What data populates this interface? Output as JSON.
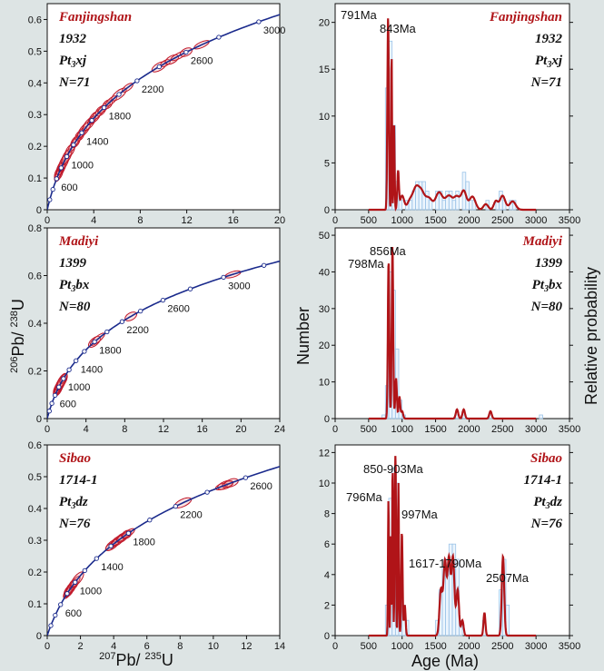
{
  "axis_titles": {
    "left_y": {
      "sup1": "206",
      "mid1": "Pb/ ",
      "sup2": "238",
      "mid2": "U"
    },
    "left_x": {
      "sup1": "207",
      "mid1": "Pb/ ",
      "sup2": "235",
      "mid2": "U"
    },
    "number": "Number",
    "relprob": "Relative probability",
    "age": "Age (Ma)"
  },
  "colors": {
    "concordia": "#1a2a8c",
    "ellipse": "#c0182a",
    "pdf": "#b01418",
    "hist": "#9cc4e8",
    "label": "#b01418"
  },
  "chart_data": [
    {
      "type": "scatter",
      "panel": "concordia",
      "site": "Fanjingshan",
      "sample": "1932",
      "unit": "Pt3xj",
      "n": "N=71",
      "xlabel": "207Pb/235U",
      "ylabel": "206Pb/238U",
      "xlim": [
        0,
        20
      ],
      "ylim": [
        0,
        0.65
      ],
      "xticks": [
        "0",
        "4",
        "8",
        "12",
        "16",
        "20"
      ],
      "yticks": [
        "0",
        "0.1",
        "0.2",
        "0.3",
        "0.4",
        "0.5",
        "0.6"
      ],
      "age_labels": [
        "600",
        "1000",
        "1400",
        "1800",
        "2200",
        "2600",
        "3000"
      ],
      "ellipse_ages": [
        650,
        700,
        750,
        780,
        800,
        820,
        850,
        900,
        950,
        1000,
        1050,
        1100,
        1200,
        1250,
        1300,
        1350,
        1400,
        1450,
        1500,
        1550,
        1600,
        1650,
        1700,
        1750,
        1800,
        1850,
        1900,
        2000,
        2100,
        2400,
        2450,
        2500,
        2550,
        2600,
        2700
      ]
    },
    {
      "type": "bar",
      "panel": "age-distribution",
      "site": "Fanjingshan",
      "sample": "1932",
      "unit": "Pt3xj",
      "n": "N=71",
      "xlabel": "Age (Ma)",
      "ylabel": "Number",
      "y2label": "Relative probability",
      "xlim": [
        0,
        3500
      ],
      "ylim": [
        0,
        22
      ],
      "xticks": [
        "0",
        "500",
        "1000",
        "1500",
        "2000",
        "2500",
        "3000",
        "3500"
      ],
      "yticks": [
        "0",
        "5",
        "10",
        "15",
        "20"
      ],
      "bins": [
        [
          750,
          800,
          13
        ],
        [
          800,
          850,
          18
        ],
        [
          850,
          900,
          9
        ],
        [
          900,
          950,
          3
        ],
        [
          950,
          1000,
          1
        ],
        [
          1050,
          1100,
          1
        ],
        [
          1100,
          1150,
          1
        ],
        [
          1150,
          1200,
          2
        ],
        [
          1200,
          1250,
          3
        ],
        [
          1250,
          1300,
          3
        ],
        [
          1300,
          1350,
          3
        ],
        [
          1350,
          1400,
          2
        ],
        [
          1400,
          1450,
          1
        ],
        [
          1500,
          1550,
          2
        ],
        [
          1550,
          1600,
          2
        ],
        [
          1600,
          1650,
          1
        ],
        [
          1650,
          1700,
          2
        ],
        [
          1700,
          1750,
          2
        ],
        [
          1750,
          1800,
          1
        ],
        [
          1800,
          1850,
          2
        ],
        [
          1900,
          1950,
          4
        ],
        [
          1950,
          2000,
          3
        ],
        [
          2000,
          2050,
          1
        ],
        [
          2050,
          2100,
          1
        ],
        [
          2250,
          2300,
          1
        ],
        [
          2400,
          2450,
          1
        ],
        [
          2450,
          2500,
          2
        ],
        [
          2500,
          2550,
          1
        ],
        [
          2600,
          2650,
          1
        ],
        [
          2650,
          2700,
          1
        ]
      ],
      "peaks": [
        [
          791,
          20.5,
          11
        ],
        [
          843,
          17,
          6
        ],
        [
          880,
          9,
          8
        ],
        [
          940,
          4,
          12
        ],
        [
          1000,
          1.5,
          30
        ],
        [
          1120,
          1,
          40
        ],
        [
          1200,
          1.8,
          40
        ],
        [
          1280,
          2,
          50
        ],
        [
          1400,
          1.2,
          50
        ],
        [
          1550,
          1.8,
          50
        ],
        [
          1700,
          1.5,
          60
        ],
        [
          1820,
          1.2,
          40
        ],
        [
          1920,
          2,
          40
        ],
        [
          2050,
          1.4,
          45
        ],
        [
          2250,
          0.6,
          35
        ],
        [
          2400,
          0.9,
          30
        ],
        [
          2500,
          1.5,
          40
        ],
        [
          2650,
          0.9,
          45
        ]
      ],
      "pdf_scale": 1,
      "peak_labels": [
        [
          "791Ma",
          791
        ],
        [
          "843Ma",
          843
        ]
      ]
    },
    {
      "type": "scatter",
      "panel": "concordia",
      "site": "Madiyi",
      "sample": "1399",
      "unit": "Pt3bx",
      "n": "N=80",
      "xlabel": "207Pb/235U",
      "ylabel": "206Pb/238U",
      "xlim": [
        0,
        24
      ],
      "ylim": [
        0,
        0.8
      ],
      "xticks": [
        "0",
        "4",
        "8",
        "12",
        "16",
        "20",
        "24"
      ],
      "yticks": [
        "0",
        "0.2",
        "0.4",
        "0.6",
        "0.8"
      ],
      "age_labels": [
        "600",
        "1000",
        "1400",
        "1800",
        "2200",
        "2600",
        "3000"
      ],
      "ellipse_ages": [
        700,
        750,
        780,
        800,
        820,
        850,
        880,
        900,
        920,
        950,
        1000,
        1800,
        1850,
        2300,
        3050
      ]
    },
    {
      "type": "bar",
      "panel": "age-distribution",
      "site": "Madiyi",
      "sample": "1399",
      "unit": "Pt3bx",
      "n": "N=80",
      "xlabel": "Age (Ma)",
      "ylabel": "Number",
      "y2label": "Relative probability",
      "xlim": [
        0,
        3500
      ],
      "ylim": [
        0,
        52
      ],
      "xticks": [
        "0",
        "500",
        "1000",
        "1500",
        "2000",
        "2500",
        "3000",
        "3500"
      ],
      "yticks": [
        "0",
        "10",
        "20",
        "30",
        "40",
        "50"
      ],
      "bins": [
        [
          700,
          750,
          1
        ],
        [
          750,
          800,
          9
        ],
        [
          800,
          850,
          40
        ],
        [
          850,
          900,
          35
        ],
        [
          900,
          950,
          19
        ],
        [
          950,
          1000,
          5
        ],
        [
          1000,
          1050,
          1
        ],
        [
          1800,
          1850,
          1
        ],
        [
          1900,
          1950,
          1
        ],
        [
          2300,
          2350,
          1
        ],
        [
          3050,
          3100,
          1
        ]
      ],
      "peaks": [
        [
          798,
          43,
          11
        ],
        [
          856,
          47,
          11
        ],
        [
          910,
          11,
          12
        ],
        [
          960,
          6,
          12
        ],
        [
          1000,
          2,
          15
        ],
        [
          1820,
          2.5,
          18
        ],
        [
          1920,
          2.5,
          18
        ],
        [
          2320,
          2,
          18
        ],
        [
          3060,
          2,
          18
        ]
      ],
      "pdf_scale": 1,
      "peak_labels": [
        [
          "798Ma",
          798
        ],
        [
          "856Ma",
          856
        ]
      ]
    },
    {
      "type": "scatter",
      "panel": "concordia",
      "site": "Sibao",
      "sample": "1714-1",
      "unit": "Pt3dz",
      "n": "N=76",
      "xlabel": "207Pb/235U",
      "ylabel": "206Pb/238U",
      "xlim": [
        0,
        14
      ],
      "ylim": [
        0,
        0.6
      ],
      "xticks": [
        "0",
        "2",
        "4",
        "6",
        "8",
        "10",
        "12",
        "14"
      ],
      "yticks": [
        "0",
        "0.1",
        "0.2",
        "0.3",
        "0.4",
        "0.5",
        "0.6"
      ],
      "age_labels": [
        "600",
        "1000",
        "1400",
        "1800",
        "2200",
        "2600"
      ],
      "ellipse_ages": [
        800,
        850,
        880,
        900,
        930,
        960,
        1000,
        1050,
        1600,
        1620,
        1650,
        1680,
        1700,
        1730,
        1750,
        1780,
        1800,
        2250,
        2480,
        2500,
        2510,
        2530
      ]
    },
    {
      "type": "bar",
      "panel": "age-distribution",
      "site": "Sibao",
      "sample": "1714-1",
      "unit": "Pt3dz",
      "n": "N=76",
      "xlabel": "Age (Ma)",
      "ylabel": "Number",
      "y2label": "Relative probability",
      "xlim": [
        0,
        3500
      ],
      "ylim": [
        0,
        12.5
      ],
      "xticks": [
        "0",
        "500",
        "1000",
        "1500",
        "2000",
        "2500",
        "3000",
        "3500"
      ],
      "yticks": [
        "0",
        "2",
        "4",
        "6",
        "8",
        "10",
        "12"
      ],
      "bins": [
        [
          750,
          800,
          2
        ],
        [
          800,
          850,
          9
        ],
        [
          850,
          900,
          11
        ],
        [
          900,
          950,
          10
        ],
        [
          950,
          1000,
          4
        ],
        [
          1000,
          1050,
          2
        ],
        [
          1050,
          1100,
          1
        ],
        [
          1500,
          1550,
          1
        ],
        [
          1550,
          1600,
          3
        ],
        [
          1600,
          1650,
          5
        ],
        [
          1650,
          1700,
          5
        ],
        [
          1700,
          1750,
          6
        ],
        [
          1750,
          1800,
          6
        ],
        [
          1800,
          1850,
          5
        ],
        [
          1850,
          1900,
          1
        ],
        [
          2200,
          2250,
          1
        ],
        [
          2450,
          2500,
          3
        ],
        [
          2500,
          2550,
          5
        ],
        [
          2550,
          2600,
          2
        ]
      ],
      "peaks": [
        [
          796,
          8.9,
          7
        ],
        [
          830,
          6.5,
          6
        ],
        [
          858,
          11.1,
          7
        ],
        [
          890,
          7,
          6
        ],
        [
          903,
          11,
          7
        ],
        [
          945,
          10,
          8
        ],
        [
          997,
          6.8,
          10
        ],
        [
          1040,
          2,
          12
        ],
        [
          1580,
          3,
          22
        ],
        [
          1640,
          4.8,
          22
        ],
        [
          1700,
          5,
          22
        ],
        [
          1760,
          5.1,
          22
        ],
        [
          1830,
          3,
          20
        ],
        [
          1900,
          1,
          18
        ],
        [
          2230,
          1.5,
          14
        ],
        [
          2507,
          5.2,
          18
        ]
      ],
      "pdf_scale": 1,
      "peak_labels": [
        [
          "850-903Ma",
          880
        ],
        [
          "796Ma",
          796
        ],
        [
          "997Ma",
          997
        ],
        [
          "1617-1790Ma",
          1700
        ],
        [
          "2507Ma",
          2507
        ]
      ]
    }
  ]
}
